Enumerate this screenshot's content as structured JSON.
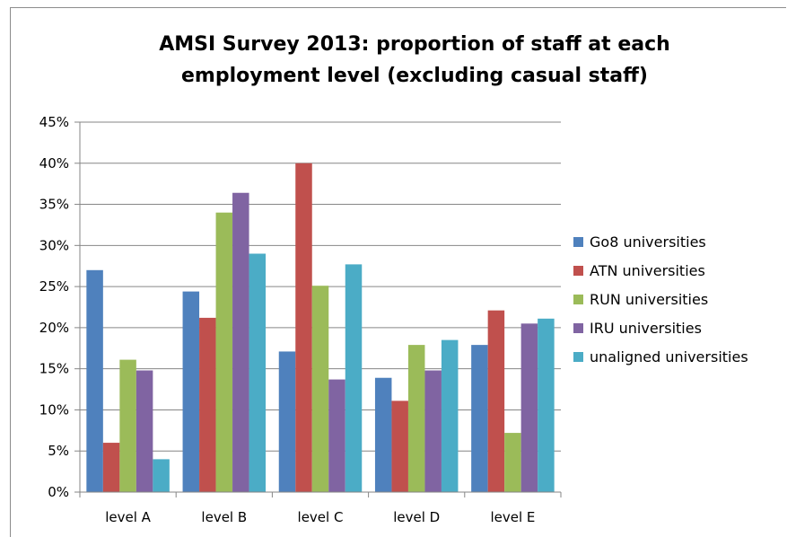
{
  "chart_data": {
    "type": "bar",
    "title_lines": [
      "AMSI Survey 2013: proportion of staff at each",
      "employment level (excluding casual staff)"
    ],
    "categories": [
      "level A",
      "level B",
      "level C",
      "level D",
      "level E"
    ],
    "series": [
      {
        "name": "Go8 universities",
        "color": "#4f81bd",
        "values": [
          27.0,
          24.4,
          17.1,
          13.9,
          17.9
        ]
      },
      {
        "name": "ATN universities",
        "color": "#c0504d",
        "values": [
          6.0,
          21.2,
          40.0,
          11.1,
          22.1
        ]
      },
      {
        "name": "RUN universities",
        "color": "#9bbb59",
        "values": [
          16.1,
          34.0,
          25.1,
          17.9,
          7.2
        ]
      },
      {
        "name": "IRU universities",
        "color": "#8064a2",
        "values": [
          14.8,
          36.4,
          13.7,
          14.8,
          20.5
        ]
      },
      {
        "name": "unaligned universities",
        "color": "#4bacc6",
        "values": [
          4.0,
          29.0,
          27.7,
          18.5,
          21.1
        ]
      }
    ],
    "yticks": [
      "0%",
      "5%",
      "10%",
      "15%",
      "20%",
      "25%",
      "30%",
      "35%",
      "40%",
      "45%"
    ],
    "ylim": [
      0,
      45
    ],
    "grid": true,
    "legend_position": "right"
  }
}
